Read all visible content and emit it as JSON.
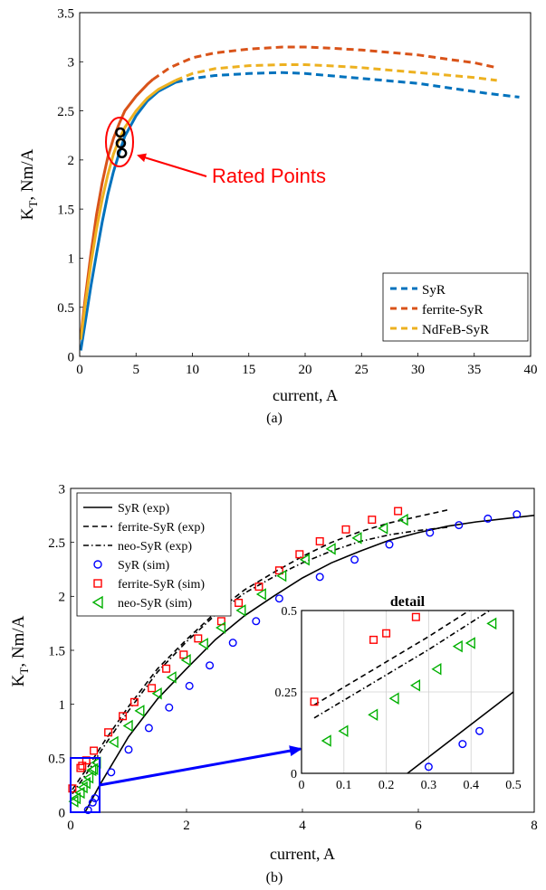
{
  "chart_data": [
    {
      "id": "a",
      "type": "line",
      "panel_label": "(a)",
      "xlabel": "current, A",
      "ylabel_main": "K",
      "ylabel_sub": "T",
      "ylabel_rest": ", Nm/A",
      "xlim": [
        0,
        40
      ],
      "ylim": [
        0,
        3.5
      ],
      "xticks": [
        0,
        5,
        10,
        15,
        20,
        25,
        30,
        35,
        40
      ],
      "yticks": [
        0,
        0.5,
        1,
        1.5,
        2,
        2.5,
        3,
        3.5
      ],
      "xtick_labels": [
        "0",
        "5",
        "10",
        "15",
        "20",
        "25",
        "30",
        "35",
        "40"
      ],
      "ytick_labels": [
        "0",
        "0.5",
        "1",
        "1.5",
        "2",
        "2.5",
        "3",
        "3.5"
      ],
      "grid": false,
      "legend_position": "bottom-right",
      "series": [
        {
          "name": "SyR",
          "color": "#0072BD",
          "dash_from_x": 8.5,
          "points": [
            [
              0.1,
              0.06
            ],
            [
              0.5,
              0.35
            ],
            [
              1,
              0.72
            ],
            [
              1.5,
              1.05
            ],
            [
              2,
              1.37
            ],
            [
              2.5,
              1.65
            ],
            [
              3,
              1.88
            ],
            [
              3.5,
              2.07
            ],
            [
              4,
              2.24
            ],
            [
              5,
              2.45
            ],
            [
              6,
              2.6
            ],
            [
              7,
              2.7
            ],
            [
              8,
              2.76
            ],
            [
              8.5,
              2.79
            ],
            [
              10,
              2.83
            ],
            [
              12,
              2.86
            ],
            [
              15,
              2.88
            ],
            [
              18,
              2.89
            ],
            [
              20,
              2.88
            ],
            [
              22,
              2.86
            ],
            [
              25,
              2.83
            ],
            [
              28,
              2.8
            ],
            [
              30,
              2.78
            ],
            [
              33,
              2.73
            ],
            [
              36,
              2.68
            ],
            [
              39,
              2.64
            ]
          ]
        },
        {
          "name": "ferrite-SyR",
          "color": "#D95319",
          "dash_from_x": 6.5,
          "points": [
            [
              0.1,
              0.2
            ],
            [
              0.5,
              0.6
            ],
            [
              1,
              1.05
            ],
            [
              1.5,
              1.45
            ],
            [
              2,
              1.77
            ],
            [
              2.5,
              2.03
            ],
            [
              3,
              2.22
            ],
            [
              3.5,
              2.37
            ],
            [
              4,
              2.5
            ],
            [
              5,
              2.65
            ],
            [
              6,
              2.77
            ],
            [
              6.5,
              2.82
            ],
            [
              8,
              2.94
            ],
            [
              10,
              3.04
            ],
            [
              12,
              3.09
            ],
            [
              15,
              3.13
            ],
            [
              18,
              3.15
            ],
            [
              20,
              3.15
            ],
            [
              22,
              3.14
            ],
            [
              25,
              3.12
            ],
            [
              28,
              3.09
            ],
            [
              30,
              3.07
            ],
            [
              33,
              3.02
            ],
            [
              35,
              2.99
            ],
            [
              37,
              2.94
            ]
          ]
        },
        {
          "name": "NdFeB-SyR",
          "color": "#EDB120",
          "dash_from_x": 8.5,
          "points": [
            [
              0.1,
              0.17
            ],
            [
              0.5,
              0.53
            ],
            [
              1,
              0.95
            ],
            [
              1.5,
              1.3
            ],
            [
              2,
              1.6
            ],
            [
              2.5,
              1.85
            ],
            [
              3,
              2.06
            ],
            [
              3.5,
              2.21
            ],
            [
              4,
              2.33
            ],
            [
              5,
              2.5
            ],
            [
              6,
              2.63
            ],
            [
              7,
              2.72
            ],
            [
              8,
              2.78
            ],
            [
              8.5,
              2.81
            ],
            [
              10,
              2.88
            ],
            [
              12,
              2.93
            ],
            [
              15,
              2.96
            ],
            [
              18,
              2.97
            ],
            [
              20,
              2.97
            ],
            [
              22,
              2.96
            ],
            [
              25,
              2.94
            ],
            [
              28,
              2.91
            ],
            [
              30,
              2.89
            ],
            [
              33,
              2.86
            ],
            [
              35,
              2.84
            ],
            [
              37,
              2.81
            ]
          ]
        }
      ],
      "rated_points": [
        [
          3.6,
          2.28
        ],
        [
          3.65,
          2.17
        ],
        [
          3.75,
          2.07
        ]
      ],
      "annotation": "Rated Points",
      "annotation_color": "#FF0000"
    },
    {
      "id": "b",
      "type": "line",
      "panel_label": "(b)",
      "xlabel": "current, A",
      "ylabel_main": "K",
      "ylabel_sub": "T",
      "ylabel_rest": ", Nm/A",
      "xlim": [
        0,
        8
      ],
      "ylim": [
        0,
        3
      ],
      "xticks": [
        0,
        2,
        4,
        6,
        8
      ],
      "yticks": [
        0,
        0.5,
        1,
        1.5,
        2,
        2.5,
        3
      ],
      "xtick_labels": [
        "0",
        "2",
        "4",
        "6",
        "8"
      ],
      "ytick_labels": [
        "0",
        "0.5",
        "1",
        "1.5",
        "2",
        "2.5",
        "3"
      ],
      "grid": false,
      "legend_position": "top-left",
      "lines": [
        {
          "name": "SyR (exp)",
          "style": "solid",
          "points": [
            [
              0.25,
              0.0
            ],
            [
              0.5,
              0.25
            ],
            [
              1,
              0.7
            ],
            [
              1.5,
              1.05
            ],
            [
              2,
              1.33
            ],
            [
              2.5,
              1.6
            ],
            [
              3,
              1.82
            ],
            [
              3.5,
              2.0
            ],
            [
              4,
              2.17
            ],
            [
              4.5,
              2.31
            ],
            [
              5,
              2.42
            ],
            [
              5.5,
              2.52
            ],
            [
              6,
              2.59
            ],
            [
              6.5,
              2.65
            ],
            [
              7,
              2.69
            ],
            [
              7.5,
              2.72
            ],
            [
              8,
              2.75
            ]
          ]
        },
        {
          "name": "ferrite-SyR (exp)",
          "style": "dashed",
          "points": [
            [
              0.03,
              0.21
            ],
            [
              0.3,
              0.42
            ],
            [
              0.6,
              0.67
            ],
            [
              1,
              0.98
            ],
            [
              1.5,
              1.33
            ],
            [
              2,
              1.6
            ],
            [
              2.5,
              1.85
            ],
            [
              3,
              2.06
            ],
            [
              3.5,
              2.22
            ],
            [
              4,
              2.37
            ],
            [
              4.5,
              2.5
            ],
            [
              5,
              2.6
            ],
            [
              5.5,
              2.68
            ],
            [
              6,
              2.74
            ],
            [
              6.5,
              2.8
            ]
          ]
        },
        {
          "name": "neo-SyR (exp)",
          "style": "dashdot",
          "points": [
            [
              0.03,
              0.17
            ],
            [
              0.3,
              0.38
            ],
            [
              0.6,
              0.63
            ],
            [
              1,
              0.94
            ],
            [
              1.5,
              1.3
            ],
            [
              2,
              1.58
            ],
            [
              2.5,
              1.83
            ],
            [
              3,
              2.03
            ],
            [
              3.5,
              2.18
            ],
            [
              4,
              2.31
            ],
            [
              4.5,
              2.42
            ],
            [
              5,
              2.51
            ],
            [
              5.5,
              2.57
            ],
            [
              6,
              2.61
            ],
            [
              6.5,
              2.64
            ]
          ]
        }
      ],
      "markers": [
        {
          "name": "SyR (sim)",
          "marker": "circle",
          "color": "#0000FF",
          "points": [
            [
              0.3,
              0.02
            ],
            [
              0.38,
              0.09
            ],
            [
              0.42,
              0.13
            ],
            [
              0.7,
              0.37
            ],
            [
              1,
              0.58
            ],
            [
              1.35,
              0.78
            ],
            [
              1.7,
              0.97
            ],
            [
              2.05,
              1.17
            ],
            [
              2.4,
              1.36
            ],
            [
              2.8,
              1.57
            ],
            [
              3.2,
              1.77
            ],
            [
              3.6,
              1.98
            ],
            [
              4.3,
              2.18
            ],
            [
              4.9,
              2.34
            ],
            [
              5.5,
              2.48
            ],
            [
              6.2,
              2.59
            ],
            [
              6.7,
              2.66
            ],
            [
              7.2,
              2.72
            ],
            [
              7.7,
              2.76
            ]
          ]
        },
        {
          "name": "ferrite-SyR (sim)",
          "marker": "square",
          "color": "#FF0000",
          "points": [
            [
              0.03,
              0.22
            ],
            [
              0.17,
              0.41
            ],
            [
              0.2,
              0.43
            ],
            [
              0.27,
              0.48
            ],
            [
              0.4,
              0.57
            ],
            [
              0.65,
              0.74
            ],
            [
              0.9,
              0.89
            ],
            [
              1.1,
              1.02
            ],
            [
              1.4,
              1.15
            ],
            [
              1.65,
              1.33
            ],
            [
              1.95,
              1.46
            ],
            [
              2.2,
              1.61
            ],
            [
              2.6,
              1.77
            ],
            [
              2.9,
              1.94
            ],
            [
              3.25,
              2.09
            ],
            [
              3.6,
              2.24
            ],
            [
              3.95,
              2.39
            ],
            [
              4.3,
              2.51
            ],
            [
              4.75,
              2.62
            ],
            [
              5.2,
              2.71
            ],
            [
              5.65,
              2.79
            ]
          ]
        },
        {
          "name": "neo-SyR (sim)",
          "marker": "triangle-left",
          "color": "#00B000",
          "points": [
            [
              0.06,
              0.1
            ],
            [
              0.1,
              0.13
            ],
            [
              0.17,
              0.18
            ],
            [
              0.22,
              0.23
            ],
            [
              0.27,
              0.27
            ],
            [
              0.32,
              0.32
            ],
            [
              0.37,
              0.39
            ],
            [
              0.4,
              0.4
            ],
            [
              0.45,
              0.46
            ],
            [
              0.75,
              0.65
            ],
            [
              1.0,
              0.8
            ],
            [
              1.2,
              0.94
            ],
            [
              1.5,
              1.1
            ],
            [
              1.75,
              1.25
            ],
            [
              2.0,
              1.41
            ],
            [
              2.3,
              1.56
            ],
            [
              2.6,
              1.71
            ],
            [
              2.95,
              1.87
            ],
            [
              3.3,
              2.02
            ],
            [
              3.65,
              2.19
            ],
            [
              4.05,
              2.34
            ],
            [
              4.5,
              2.44
            ],
            [
              4.95,
              2.54
            ],
            [
              5.4,
              2.63
            ],
            [
              5.75,
              2.71
            ]
          ]
        }
      ],
      "inset": {
        "title": "detail",
        "xlim": [
          0,
          0.5
        ],
        "ylim": [
          0,
          0.5
        ],
        "xticks": [
          0,
          0.1,
          0.2,
          0.3,
          0.4,
          0.5
        ],
        "yticks": [
          0,
          0.25,
          0.5
        ],
        "xtick_labels": [
          "0",
          "0.1",
          "0.2",
          "0.3",
          "0.4",
          "0.5"
        ],
        "ytick_labels": [
          "0",
          "0.25",
          "0.5"
        ],
        "grid": true
      },
      "zoom_box": {
        "x": [
          0,
          0.5
        ],
        "y": [
          0,
          0.5
        ],
        "color": "#0000FF"
      }
    }
  ]
}
